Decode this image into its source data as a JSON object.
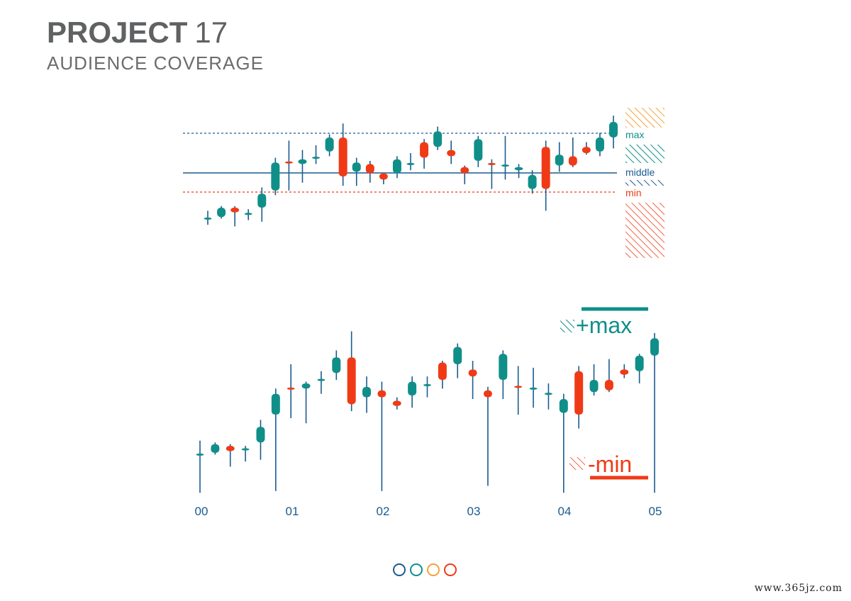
{
  "header": {
    "title_bold": "PROJECT",
    "title_number": "17",
    "subtitle": "AUDIENCE COVERAGE"
  },
  "colors": {
    "teal": "#108f89",
    "red": "#f03a16",
    "blue": "#1a5b8f",
    "orange": "#f2a23c",
    "text": "#5f6163"
  },
  "chart_data": [
    {
      "type": "candlestick",
      "title": "",
      "levels": [
        {
          "name": "max",
          "value": 83
        },
        {
          "name": "middle",
          "value": 62
        },
        {
          "name": "min",
          "value": 51
        }
      ],
      "legend_labels": [
        "max",
        "middle",
        "min"
      ],
      "ylim": [
        0,
        100
      ],
      "candles": [
        {
          "o": 28,
          "c": 28,
          "h": 33,
          "l": 24,
          "color": "teal"
        },
        {
          "o": 29,
          "c": 35,
          "h": 36,
          "l": 28,
          "color": "teal"
        },
        {
          "o": 35,
          "c": 32,
          "h": 36,
          "l": 23,
          "color": "red"
        },
        {
          "o": 31,
          "c": 31,
          "h": 34,
          "l": 27,
          "color": "teal"
        },
        {
          "o": 35,
          "c": 44,
          "h": 48,
          "l": 26,
          "color": "teal"
        },
        {
          "o": 46,
          "c": 64,
          "h": 67,
          "l": 43,
          "color": "teal"
        },
        {
          "o": 64,
          "c": 64,
          "h": 78,
          "l": 46,
          "color": "red"
        },
        {
          "o": 63,
          "c": 66,
          "h": 72,
          "l": 51,
          "color": "teal"
        },
        {
          "o": 67,
          "c": 67,
          "h": 75,
          "l": 63,
          "color": "teal"
        },
        {
          "o": 71,
          "c": 80,
          "h": 82,
          "l": 68,
          "color": "teal"
        },
        {
          "o": 80,
          "c": 55,
          "h": 89,
          "l": 49,
          "color": "red"
        },
        {
          "o": 58,
          "c": 64,
          "h": 67,
          "l": 49,
          "color": "teal"
        },
        {
          "o": 63,
          "c": 57,
          "h": 65,
          "l": 51,
          "color": "red"
        },
        {
          "o": 57,
          "c": 53,
          "h": 56,
          "l": 50,
          "color": "red"
        },
        {
          "o": 57,
          "c": 66,
          "h": 68,
          "l": 54,
          "color": "teal"
        },
        {
          "o": 63,
          "c": 63,
          "h": 70,
          "l": 59,
          "color": "teal"
        },
        {
          "o": 77,
          "c": 67,
          "h": 79,
          "l": 60,
          "color": "red"
        },
        {
          "o": 74,
          "c": 84,
          "h": 87,
          "l": 72,
          "color": "teal"
        },
        {
          "o": 72,
          "c": 68,
          "h": 78,
          "l": 63,
          "color": "red"
        },
        {
          "o": 61,
          "c": 57,
          "h": 62,
          "l": 50,
          "color": "red"
        },
        {
          "o": 65,
          "c": 79,
          "h": 81,
          "l": 61,
          "color": "teal"
        },
        {
          "o": 63,
          "c": 63,
          "h": 66,
          "l": 47,
          "color": "red"
        },
        {
          "o": 62,
          "c": 62,
          "h": 81,
          "l": 53,
          "color": "teal"
        },
        {
          "o": 61,
          "c": 59,
          "h": 63,
          "l": 54,
          "color": "teal"
        },
        {
          "o": 47,
          "c": 56,
          "h": 59,
          "l": 44,
          "color": "teal"
        },
        {
          "o": 74,
          "c": 47,
          "h": 78,
          "l": 33,
          "color": "red"
        },
        {
          "o": 62,
          "c": 69,
          "h": 77,
          "l": 58,
          "color": "teal"
        },
        {
          "o": 68,
          "c": 62,
          "h": 80,
          "l": 61,
          "color": "red"
        },
        {
          "o": 74,
          "c": 70,
          "h": 77,
          "l": 69,
          "color": "red"
        },
        {
          "o": 71,
          "c": 80,
          "h": 83,
          "l": 68,
          "color": "teal"
        },
        {
          "o": 80,
          "c": 90,
          "h": 94,
          "l": 73,
          "color": "teal"
        }
      ]
    },
    {
      "type": "candlestick",
      "title": "",
      "xlabel": "",
      "ylabel": "",
      "x_tick_labels": [
        "00",
        "01",
        "02",
        "03",
        "04",
        "05"
      ],
      "annotations": [
        "+max",
        "-min"
      ],
      "ylim": [
        0,
        100
      ],
      "candles": [
        {
          "o": 28,
          "c": 28,
          "h": 36,
          "l": 6,
          "color": "teal"
        },
        {
          "o": 29,
          "c": 34,
          "h": 35,
          "l": 28,
          "color": "teal"
        },
        {
          "o": 33,
          "c": 30,
          "h": 34,
          "l": 21,
          "color": "red"
        },
        {
          "o": 31,
          "c": 31,
          "h": 33,
          "l": 24,
          "color": "teal"
        },
        {
          "o": 35,
          "c": 44,
          "h": 48,
          "l": 25,
          "color": "teal"
        },
        {
          "o": 51,
          "c": 63,
          "h": 66,
          "l": 7,
          "color": "teal"
        },
        {
          "o": 66,
          "c": 66,
          "h": 80,
          "l": 49,
          "color": "red"
        },
        {
          "o": 66,
          "c": 69,
          "h": 70,
          "l": 46,
          "color": "teal"
        },
        {
          "o": 71,
          "c": 71,
          "h": 76,
          "l": 63,
          "color": "teal"
        },
        {
          "o": 75,
          "c": 84,
          "h": 88,
          "l": 71,
          "color": "teal"
        },
        {
          "o": 84,
          "c": 57,
          "h": 99,
          "l": 53,
          "color": "red"
        },
        {
          "o": 61,
          "c": 67,
          "h": 73,
          "l": 52,
          "color": "teal"
        },
        {
          "o": 65,
          "c": 61,
          "h": 70,
          "l": 7,
          "color": "red"
        },
        {
          "o": 59,
          "c": 56,
          "h": 61,
          "l": 54,
          "color": "red"
        },
        {
          "o": 62,
          "c": 70,
          "h": 73,
          "l": 55,
          "color": "teal"
        },
        {
          "o": 68,
          "c": 68,
          "h": 73,
          "l": 61,
          "color": "teal"
        },
        {
          "o": 81,
          "c": 71,
          "h": 82,
          "l": 66,
          "color": "red"
        },
        {
          "o": 80,
          "c": 90,
          "h": 92,
          "l": 72,
          "color": "teal"
        },
        {
          "o": 77,
          "c": 73,
          "h": 82,
          "l": 60,
          "color": "red"
        },
        {
          "o": 65,
          "c": 61,
          "h": 67,
          "l": 10,
          "color": "red"
        },
        {
          "o": 71,
          "c": 86,
          "h": 88,
          "l": 60,
          "color": "teal"
        },
        {
          "o": 67,
          "c": 67,
          "h": 79,
          "l": 51,
          "color": "red"
        },
        {
          "o": 66,
          "c": 66,
          "h": 78,
          "l": 55,
          "color": "teal"
        },
        {
          "o": 63,
          "c": 63,
          "h": 69,
          "l": 54,
          "color": "teal"
        },
        {
          "o": 52,
          "c": 60,
          "h": 63,
          "l": 6,
          "color": "teal"
        },
        {
          "o": 76,
          "c": 51,
          "h": 79,
          "l": 43,
          "color": "red"
        },
        {
          "o": 64,
          "c": 71,
          "h": 80,
          "l": 62,
          "color": "teal"
        },
        {
          "o": 71,
          "c": 65,
          "h": 83,
          "l": 64,
          "color": "red"
        },
        {
          "o": 77,
          "c": 74,
          "h": 80,
          "l": 72,
          "color": "red"
        },
        {
          "o": 76,
          "c": 85,
          "h": 86,
          "l": 69,
          "color": "teal"
        },
        {
          "o": 85,
          "c": 95,
          "h": 98,
          "l": 6,
          "color": "teal"
        }
      ]
    }
  ],
  "pagination": [
    {
      "color": "#1a5b8f"
    },
    {
      "color": "#108f89"
    },
    {
      "color": "#f2a23c"
    },
    {
      "color": "#f03a16"
    }
  ],
  "watermark": "www.365jz.com"
}
